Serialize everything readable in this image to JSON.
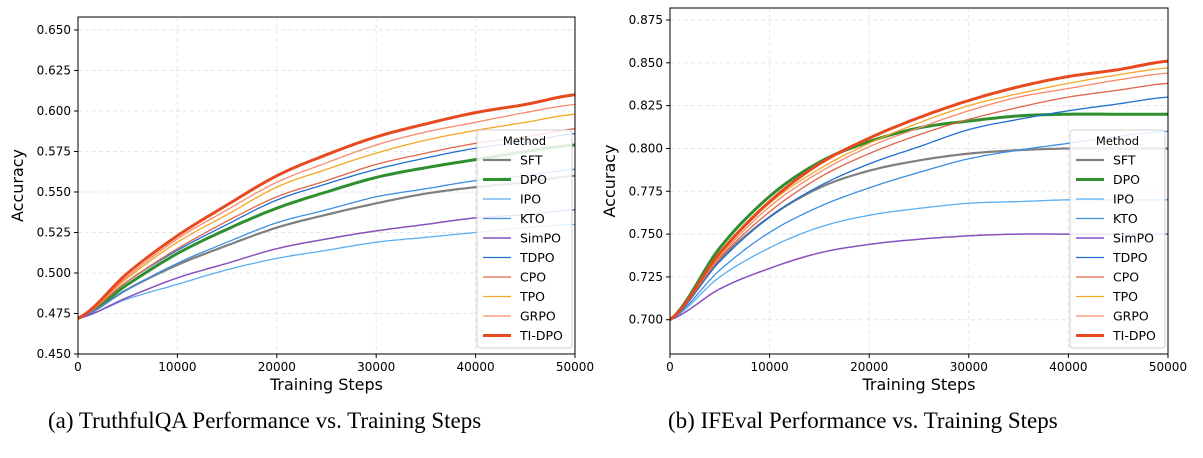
{
  "chart_data": [
    {
      "type": "line",
      "caption": "(a) TruthfulQA Performance vs. Training Steps",
      "xlabel": "Training Steps",
      "ylabel": "Accuracy",
      "xlim": [
        0,
        50000
      ],
      "ylim": [
        0.45,
        0.658
      ],
      "xticks": [
        0,
        10000,
        20000,
        30000,
        40000,
        50000
      ],
      "yticks": [
        0.45,
        0.475,
        0.5,
        0.525,
        0.55,
        0.575,
        0.6,
        0.625,
        0.65
      ],
      "grid": true,
      "legend_title": "Method",
      "legend_placement": "lower-right",
      "x": [
        0,
        5000,
        10000,
        15000,
        20000,
        25000,
        30000,
        35000,
        40000,
        45000,
        50000
      ],
      "series": [
        {
          "name": "SFT",
          "color": "#7f7f7f",
          "width": 2.2,
          "values": [
            0.472,
            0.49,
            0.505,
            0.517,
            0.528,
            0.536,
            0.543,
            0.549,
            0.553,
            0.556,
            0.56
          ]
        },
        {
          "name": "DPO",
          "color": "#2f8f2f",
          "width": 3,
          "values": [
            0.472,
            0.493,
            0.512,
            0.527,
            0.54,
            0.55,
            0.559,
            0.565,
            0.57,
            0.575,
            0.579
          ]
        },
        {
          "name": "IPO",
          "color": "#5aaef0",
          "width": 1.3,
          "values": [
            0.472,
            0.484,
            0.493,
            0.502,
            0.509,
            0.514,
            0.519,
            0.522,
            0.525,
            0.528,
            0.53
          ]
        },
        {
          "name": "KTO",
          "color": "#3a8fe0",
          "width": 1.3,
          "values": [
            0.472,
            0.49,
            0.506,
            0.519,
            0.531,
            0.539,
            0.547,
            0.552,
            0.557,
            0.56,
            0.564
          ]
        },
        {
          "name": "SimPO",
          "color": "#8a4fbf",
          "width": 1.5,
          "values": [
            0.472,
            0.485,
            0.497,
            0.506,
            0.515,
            0.521,
            0.526,
            0.53,
            0.534,
            0.536,
            0.539
          ]
        },
        {
          "name": "TDPO",
          "color": "#1f6fd0",
          "width": 1.3,
          "values": [
            0.472,
            0.495,
            0.514,
            0.53,
            0.545,
            0.555,
            0.564,
            0.571,
            0.577,
            0.581,
            0.586
          ]
        },
        {
          "name": "CPO",
          "color": "#e0644a",
          "width": 1.3,
          "values": [
            0.472,
            0.495,
            0.515,
            0.532,
            0.547,
            0.557,
            0.567,
            0.574,
            0.58,
            0.584,
            0.589
          ]
        },
        {
          "name": "TPO",
          "color": "#f5a623",
          "width": 1.3,
          "values": [
            0.472,
            0.497,
            0.519,
            0.536,
            0.553,
            0.564,
            0.574,
            0.582,
            0.588,
            0.593,
            0.598
          ]
        },
        {
          "name": "GRPO",
          "color": "#f88a6a",
          "width": 1.3,
          "values": [
            0.472,
            0.498,
            0.521,
            0.539,
            0.556,
            0.568,
            0.579,
            0.587,
            0.593,
            0.599,
            0.604
          ]
        },
        {
          "name": "TI-DPO",
          "color": "#e84a1f",
          "width": 3,
          "values": [
            0.472,
            0.5,
            0.523,
            0.542,
            0.56,
            0.573,
            0.584,
            0.592,
            0.599,
            0.604,
            0.61
          ]
        }
      ]
    },
    {
      "type": "line",
      "caption": "(b) IFEval Performance vs. Training Steps",
      "xlabel": "Training Steps",
      "ylabel": "Accuracy",
      "xlim": [
        0,
        50000
      ],
      "ylim": [
        0.68,
        0.882
      ],
      "xticks": [
        0,
        10000,
        20000,
        30000,
        40000,
        50000
      ],
      "yticks": [
        0.7,
        0.725,
        0.75,
        0.775,
        0.8,
        0.825,
        0.85,
        0.875
      ],
      "grid": true,
      "legend_title": "Method",
      "legend_placement": "lower-right",
      "x": [
        0,
        5000,
        10000,
        15000,
        20000,
        25000,
        30000,
        35000,
        40000,
        45000,
        50000
      ],
      "series": [
        {
          "name": "SFT",
          "color": "#7f7f7f",
          "width": 2.2,
          "values": [
            0.7,
            0.735,
            0.76,
            0.777,
            0.787,
            0.793,
            0.797,
            0.799,
            0.8,
            0.8,
            0.8
          ]
        },
        {
          "name": "DPO",
          "color": "#2f8f2f",
          "width": 3,
          "values": [
            0.7,
            0.742,
            0.772,
            0.792,
            0.804,
            0.812,
            0.816,
            0.819,
            0.82,
            0.82,
            0.82
          ]
        },
        {
          "name": "IPO",
          "color": "#5aaef0",
          "width": 1.3,
          "values": [
            0.7,
            0.725,
            0.742,
            0.754,
            0.761,
            0.765,
            0.768,
            0.769,
            0.77,
            0.77,
            0.77
          ]
        },
        {
          "name": "KTO",
          "color": "#3a8fe0",
          "width": 1.3,
          "values": [
            0.7,
            0.729,
            0.751,
            0.766,
            0.777,
            0.786,
            0.794,
            0.799,
            0.803,
            0.807,
            0.81
          ]
        },
        {
          "name": "SimPO",
          "color": "#8a4fbf",
          "width": 1.5,
          "values": [
            0.7,
            0.718,
            0.73,
            0.739,
            0.744,
            0.747,
            0.749,
            0.75,
            0.75,
            0.75,
            0.75
          ]
        },
        {
          "name": "TDPO",
          "color": "#1f6fd0",
          "width": 1.3,
          "values": [
            0.7,
            0.734,
            0.76,
            0.778,
            0.791,
            0.801,
            0.811,
            0.817,
            0.822,
            0.826,
            0.83
          ]
        },
        {
          "name": "CPO",
          "color": "#e0644a",
          "width": 1.3,
          "values": [
            0.7,
            0.736,
            0.763,
            0.783,
            0.797,
            0.808,
            0.817,
            0.824,
            0.83,
            0.834,
            0.838
          ]
        },
        {
          "name": "TPO",
          "color": "#f5a623",
          "width": 1.3,
          "values": [
            0.7,
            0.738,
            0.768,
            0.788,
            0.803,
            0.815,
            0.825,
            0.832,
            0.838,
            0.843,
            0.847
          ]
        },
        {
          "name": "GRPO",
          "color": "#f88a6a",
          "width": 1.3,
          "values": [
            0.7,
            0.737,
            0.766,
            0.786,
            0.801,
            0.812,
            0.822,
            0.83,
            0.835,
            0.84,
            0.844
          ]
        },
        {
          "name": "TI-DPO",
          "color": "#e84a1f",
          "width": 3,
          "values": [
            0.7,
            0.739,
            0.769,
            0.791,
            0.806,
            0.818,
            0.828,
            0.836,
            0.842,
            0.846,
            0.851
          ]
        }
      ]
    }
  ]
}
